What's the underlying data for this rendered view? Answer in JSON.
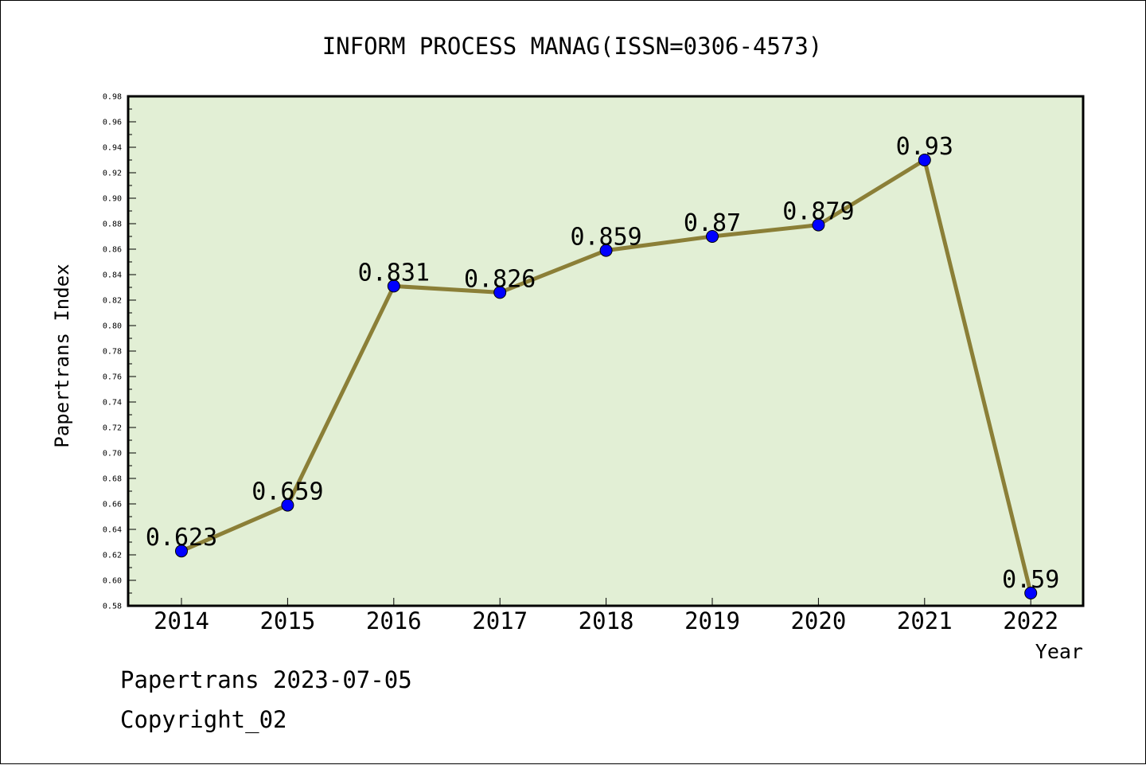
{
  "chart_data": {
    "type": "line",
    "title": "INFORM PROCESS MANAG(ISSN=0306-4573)",
    "xlabel": "Year",
    "ylabel": "Papertrans Index",
    "categories": [
      "2014",
      "2015",
      "2016",
      "2017",
      "2018",
      "2019",
      "2020",
      "2021",
      "2022"
    ],
    "series": [
      {
        "values": [
          0.623,
          0.659,
          0.831,
          0.826,
          0.859,
          0.87,
          0.879,
          0.93,
          0.59
        ],
        "labels": [
          "0.623",
          "0.659",
          "0.831",
          "0.826",
          "0.859",
          "0.87",
          "0.879",
          "0.93",
          "0.59"
        ]
      }
    ],
    "ylim": [
      0.58,
      0.98
    ],
    "yticks": [
      "0.58",
      "0.60",
      "0.62",
      "0.64",
      "0.66",
      "0.68",
      "0.70",
      "0.72",
      "0.74",
      "0.76",
      "0.78",
      "0.80",
      "0.82",
      "0.84",
      "0.86",
      "0.88",
      "0.90",
      "0.92",
      "0.94",
      "0.96",
      "0.98"
    ],
    "grid": false,
    "legend": "none",
    "colors": {
      "plot_background": "#e2efd5",
      "line": "#8b7f37",
      "marker": "#0000ff"
    }
  },
  "footer": {
    "source": "Papertrans 2023-07-05",
    "copyright": "Copyright_02"
  }
}
